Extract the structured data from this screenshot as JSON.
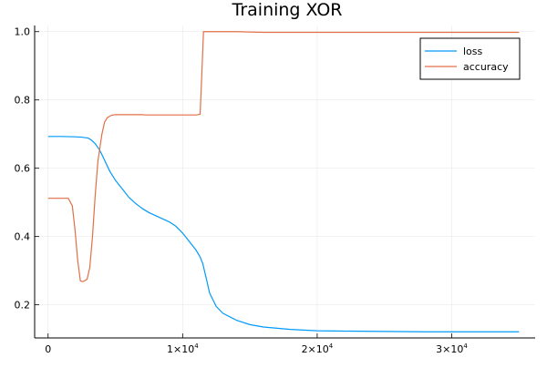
{
  "chart_data": {
    "type": "line",
    "title": "Training XOR",
    "xlabel": "",
    "ylabel": "",
    "xlim": [
      -1000,
      36200
    ],
    "ylim": [
      0.103,
      1.018
    ],
    "grid": true,
    "legend_position": "top-right",
    "x_ticks": [
      {
        "value": 0,
        "mantissa": "0",
        "exp": ""
      },
      {
        "value": 10000,
        "mantissa": "1×10",
        "exp": "4"
      },
      {
        "value": 20000,
        "mantissa": "2×10",
        "exp": "4"
      },
      {
        "value": 30000,
        "mantissa": "3×10",
        "exp": "4"
      }
    ],
    "y_ticks": [
      {
        "value": 0.2,
        "label": "0.2"
      },
      {
        "value": 0.4,
        "label": "0.4"
      },
      {
        "value": 0.6,
        "label": "0.6"
      },
      {
        "value": 0.8,
        "label": "0.8"
      },
      {
        "value": 1.0,
        "label": "1.0"
      }
    ],
    "series": [
      {
        "name": "loss",
        "color": "#009af9",
        "x": [
          0,
          1000,
          2000,
          2500,
          3000,
          3200,
          3500,
          3800,
          4000,
          4300,
          4600,
          5000,
          5500,
          6000,
          6500,
          7000,
          7500,
          8000,
          8500,
          9000,
          9500,
          10000,
          10500,
          11000,
          11300,
          11500,
          11800,
          12000,
          12500,
          13000,
          14000,
          15000,
          16000,
          18000,
          20000,
          22000,
          25000,
          28000,
          30000,
          32000,
          35000
        ],
        "y": [
          0.693,
          0.693,
          0.692,
          0.691,
          0.688,
          0.683,
          0.672,
          0.655,
          0.64,
          0.615,
          0.59,
          0.565,
          0.54,
          0.515,
          0.497,
          0.482,
          0.47,
          0.461,
          0.452,
          0.443,
          0.43,
          0.41,
          0.385,
          0.36,
          0.34,
          0.32,
          0.27,
          0.235,
          0.195,
          0.175,
          0.155,
          0.142,
          0.135,
          0.128,
          0.124,
          0.123,
          0.122,
          0.121,
          0.121,
          0.121,
          0.121
        ]
      },
      {
        "name": "accuracy",
        "color": "#e26f46",
        "x": [
          0,
          500,
          1000,
          1500,
          1800,
          2000,
          2200,
          2400,
          2600,
          2900,
          3100,
          3300,
          3500,
          3700,
          4000,
          4200,
          4400,
          4700,
          5000,
          5500,
          6000,
          6500,
          7000,
          7200,
          8000,
          9000,
          10000,
          11000,
          11300,
          11450,
          11550,
          12000,
          14000,
          16000,
          20000,
          25000,
          30000,
          35000
        ],
        "y": [
          0.512,
          0.512,
          0.512,
          0.512,
          0.49,
          0.42,
          0.33,
          0.27,
          0.268,
          0.275,
          0.31,
          0.4,
          0.52,
          0.62,
          0.7,
          0.735,
          0.748,
          0.755,
          0.757,
          0.757,
          0.757,
          0.757,
          0.757,
          0.756,
          0.756,
          0.756,
          0.756,
          0.756,
          0.758,
          0.9,
          1.0,
          1.0,
          1.0,
          0.998,
          0.998,
          0.998,
          0.998,
          0.998
        ]
      }
    ]
  }
}
